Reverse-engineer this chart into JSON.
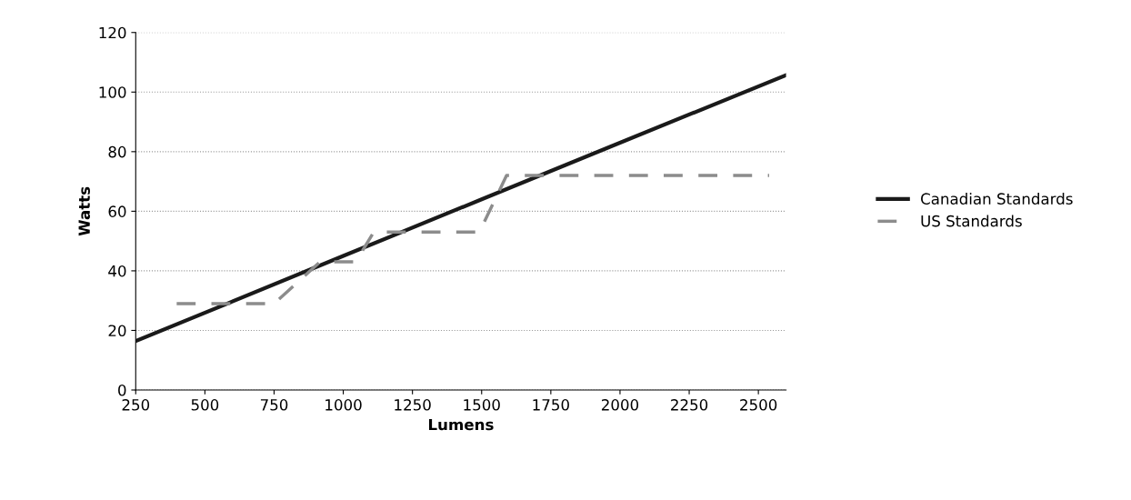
{
  "chart_data": {
    "type": "line",
    "xlabel": "Lumens",
    "ylabel": "Watts",
    "xlim": [
      250,
      2600
    ],
    "xticks": [
      250,
      500,
      750,
      1000,
      1250,
      1500,
      1750,
      2000,
      2250,
      2500
    ],
    "ylim": [
      0,
      120
    ],
    "yticks": [
      0,
      20,
      40,
      60,
      80,
      100,
      120
    ],
    "grid": "y",
    "legend": "right",
    "series": [
      {
        "name": "Canadian Standards",
        "color": "#1a1a1a",
        "line_style": "solid",
        "x": [
          250,
          1000,
          1500,
          2000,
          2600
        ],
        "values": [
          16.4,
          45,
          64,
          83,
          105.7
        ]
      },
      {
        "name": "US Standards",
        "color": "#8c8c8c",
        "line_style": "dashed",
        "x": [
          398,
          750,
          916,
          1045,
          1110,
          1492,
          1590,
          2539
        ],
        "values": [
          29,
          29,
          43,
          43,
          53,
          53,
          72,
          72
        ]
      }
    ]
  }
}
